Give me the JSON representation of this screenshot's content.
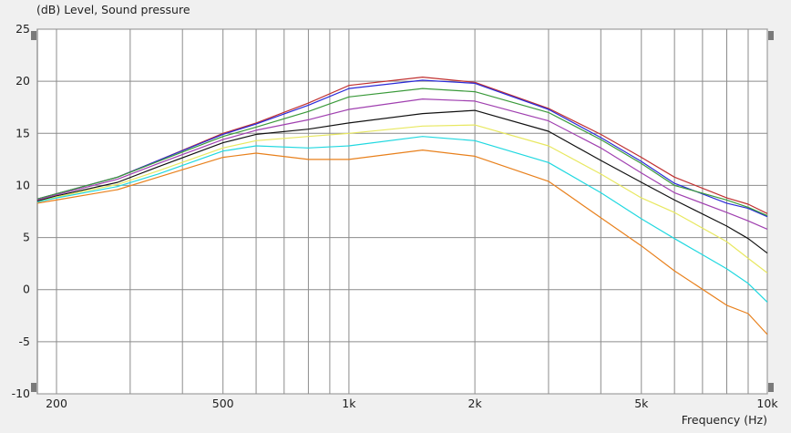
{
  "chart_data": {
    "type": "line",
    "ylabel": "(dB)  Level, Sound pressure",
    "xlabel": "Frequency  (Hz)",
    "x_scale": "log",
    "xlim": [
      180,
      10000
    ],
    "ylim": [
      -10,
      25
    ],
    "y_ticks": [
      -10,
      -5,
      0,
      5,
      10,
      15,
      20,
      25
    ],
    "x_tick_labels": [
      {
        "value": 200,
        "label": "200"
      },
      {
        "value": 500,
        "label": "500"
      },
      {
        "value": 1000,
        "label": "1k"
      },
      {
        "value": 2000,
        "label": "2k"
      },
      {
        "value": 5000,
        "label": "5k"
      },
      {
        "value": 10000,
        "label": "10k"
      }
    ],
    "x_grid": [
      200,
      300,
      400,
      500,
      600,
      700,
      800,
      900,
      1000,
      2000,
      3000,
      4000,
      5000,
      6000,
      7000,
      8000,
      9000,
      10000
    ],
    "grid": true,
    "legend": "none",
    "series": [
      {
        "color": "#c03030",
        "x": [
          180,
          200,
          280,
          350,
          500,
          600,
          800,
          1000,
          1500,
          2000,
          3000,
          4000,
          5000,
          6000,
          8000,
          9000,
          10000
        ],
        "y": [
          8.7,
          9.2,
          10.8,
          12.4,
          15.0,
          16.0,
          17.9,
          19.6,
          20.4,
          19.9,
          17.4,
          14.9,
          12.7,
          10.8,
          8.8,
          8.2,
          7.3
        ]
      },
      {
        "color": "#2a2ad8",
        "x": [
          180,
          200,
          280,
          350,
          500,
          600,
          800,
          1000,
          1500,
          2000,
          3000,
          4000,
          5000,
          6000,
          8000,
          9000,
          10000
        ],
        "y": [
          8.7,
          9.2,
          10.8,
          12.4,
          14.9,
          15.9,
          17.7,
          19.3,
          20.1,
          19.8,
          17.3,
          14.6,
          12.3,
          10.2,
          8.3,
          7.8,
          7.0
        ]
      },
      {
        "color": "#3a9a3a",
        "x": [
          180,
          200,
          280,
          350,
          500,
          600,
          800,
          1000,
          1500,
          2000,
          3000,
          4000,
          5000,
          6000,
          8000,
          9000,
          10000
        ],
        "y": [
          8.7,
          9.2,
          10.8,
          12.3,
          14.7,
          15.6,
          17.1,
          18.5,
          19.3,
          19.0,
          17.0,
          14.4,
          12.1,
          10.0,
          8.6,
          7.9,
          7.1
        ]
      },
      {
        "color": "#a040b0",
        "x": [
          180,
          200,
          280,
          350,
          500,
          600,
          800,
          1000,
          1500,
          2000,
          3000,
          4000,
          5000,
          6000,
          8000,
          9000,
          10000
        ],
        "y": [
          8.6,
          9.1,
          10.6,
          12.1,
          14.4,
          15.3,
          16.3,
          17.3,
          18.3,
          18.1,
          16.2,
          13.6,
          11.2,
          9.3,
          7.4,
          6.6,
          5.8
        ]
      },
      {
        "color": "#111111",
        "x": [
          180,
          200,
          280,
          350,
          500,
          600,
          800,
          1000,
          1500,
          2000,
          3000,
          4000,
          5000,
          6000,
          8000,
          9000,
          10000
        ],
        "y": [
          8.5,
          9.0,
          10.3,
          11.8,
          14.1,
          14.9,
          15.4,
          16.0,
          16.9,
          17.2,
          15.2,
          12.4,
          10.3,
          8.6,
          6.1,
          4.9,
          3.5
        ]
      },
      {
        "color": "#e8e860",
        "x": [
          180,
          200,
          280,
          350,
          500,
          600,
          800,
          1000,
          1500,
          2000,
          3000,
          4000,
          5000,
          6000,
          8000,
          9000,
          10000
        ],
        "y": [
          8.4,
          8.9,
          10.1,
          11.4,
          13.6,
          14.3,
          14.7,
          15.0,
          15.7,
          15.8,
          13.8,
          11.1,
          8.8,
          7.4,
          4.6,
          3.0,
          1.6
        ]
      },
      {
        "color": "#20d8e0",
        "x": [
          180,
          200,
          280,
          350,
          500,
          600,
          800,
          1000,
          1500,
          2000,
          3000,
          4000,
          5000,
          6000,
          8000,
          9000,
          10000
        ],
        "y": [
          8.4,
          8.8,
          9.9,
          11.1,
          13.3,
          13.8,
          13.6,
          13.8,
          14.7,
          14.3,
          12.2,
          9.3,
          6.8,
          4.9,
          2.0,
          0.6,
          -1.2
        ]
      },
      {
        "color": "#e8801c",
        "x": [
          180,
          200,
          280,
          350,
          500,
          600,
          800,
          1000,
          1500,
          2000,
          3000,
          4000,
          5000,
          6000,
          8000,
          9000,
          10000
        ],
        "y": [
          8.3,
          8.6,
          9.6,
          10.8,
          12.7,
          13.1,
          12.5,
          12.5,
          13.4,
          12.8,
          10.4,
          6.9,
          4.2,
          1.8,
          -1.5,
          -2.3,
          -4.3
        ]
      }
    ]
  }
}
